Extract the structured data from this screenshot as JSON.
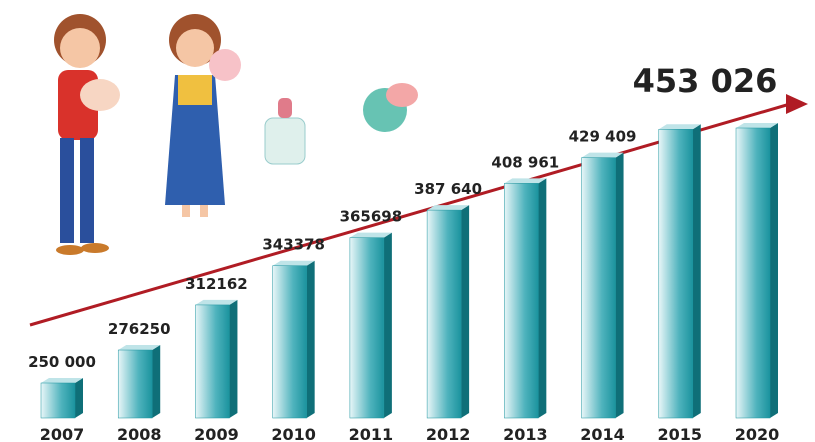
{
  "chart_data": {
    "type": "bar",
    "categories": [
      "2007",
      "2008",
      "2009",
      "2010",
      "2011",
      "2012",
      "2013",
      "2014",
      "2015",
      "2020"
    ],
    "values": [
      250000,
      276250,
      312162,
      343378,
      365698,
      387640,
      408961,
      429409,
      452000,
      453026
    ],
    "value_labels": [
      "250 000",
      "276250",
      "312162",
      "343378",
      "365698",
      "387 640",
      "408 961",
      "429 409",
      null,
      "453 026"
    ],
    "color": "#1b939e"
  }
}
